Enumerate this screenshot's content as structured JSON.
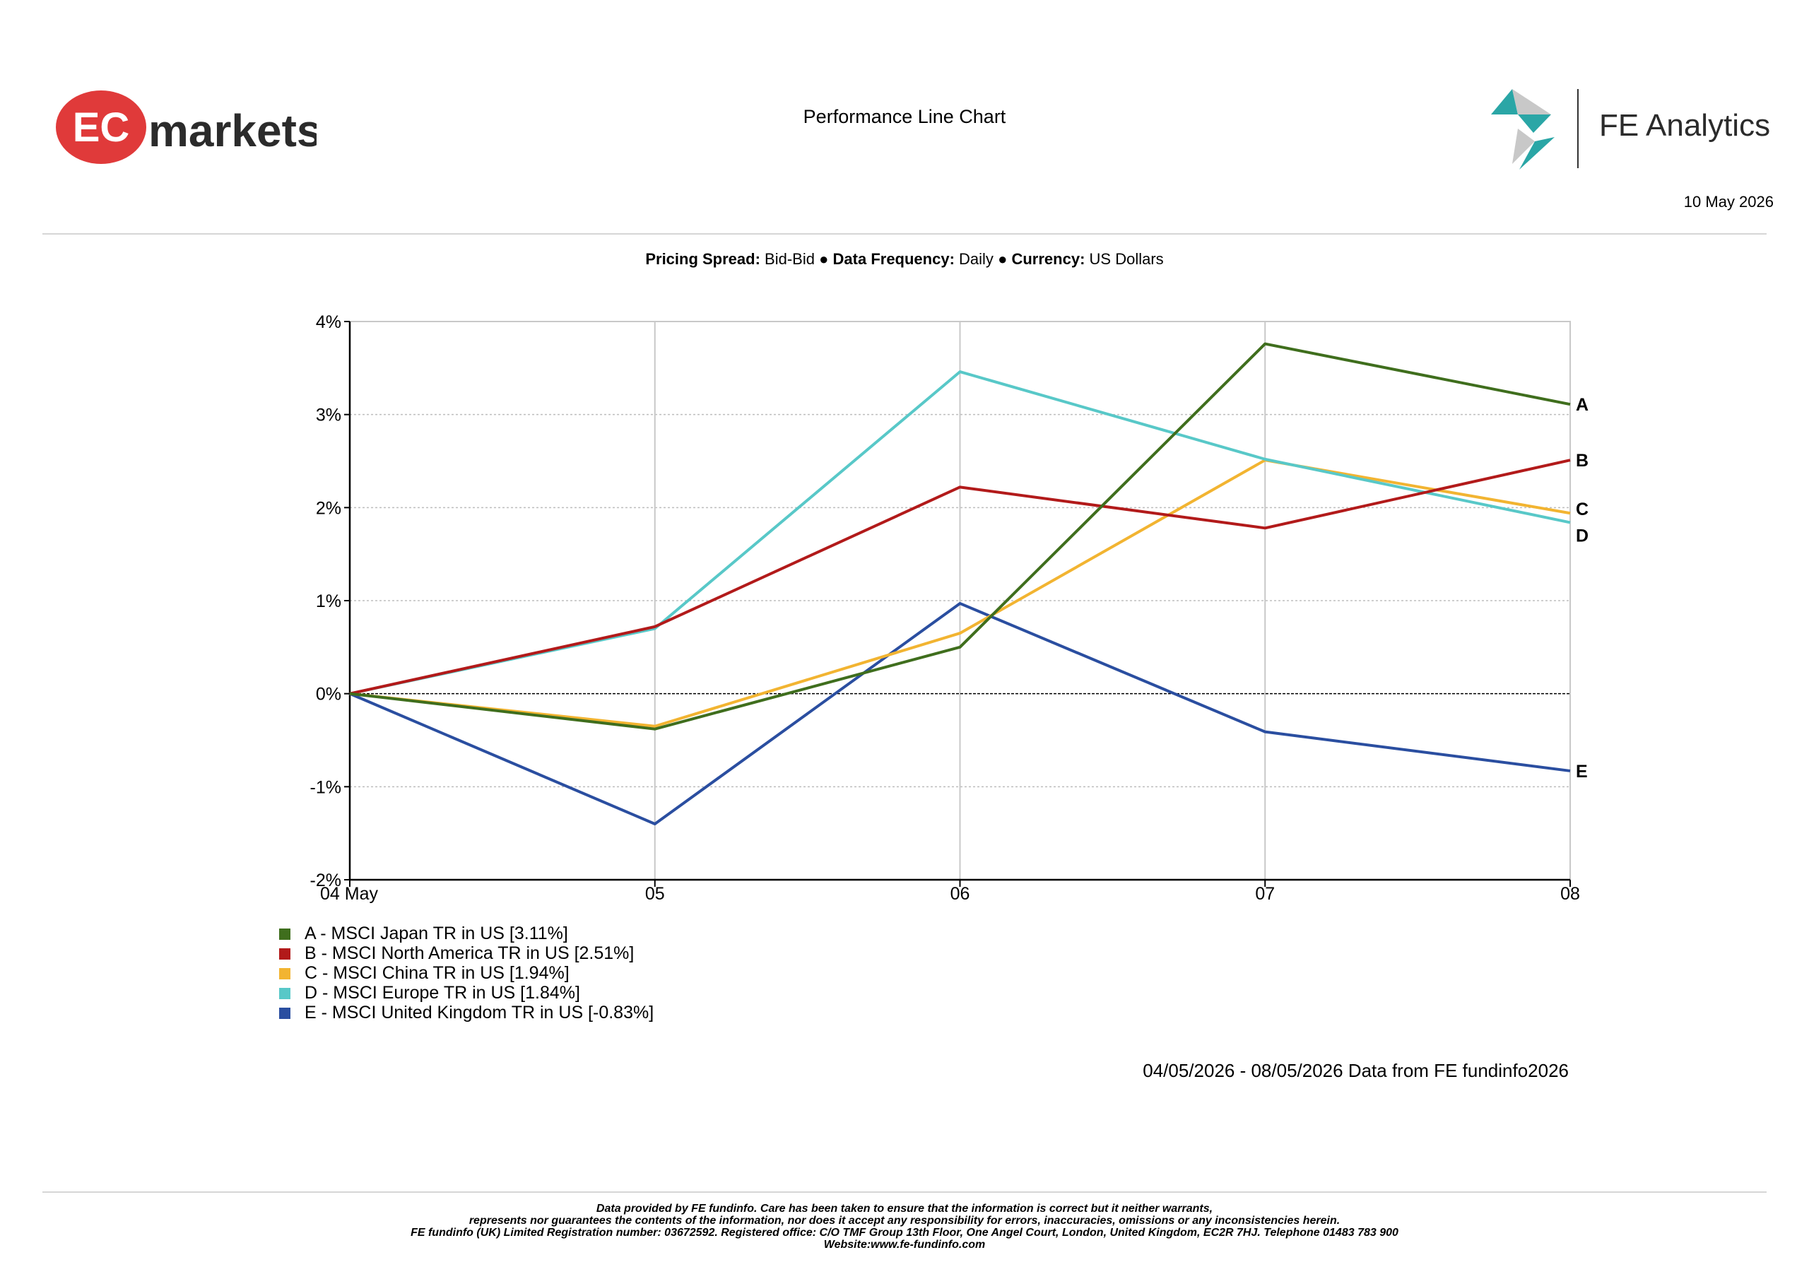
{
  "header": {
    "brand_left": {
      "ec": "EC",
      "markets": "markets",
      "color": "#e03a3a"
    },
    "title": "Performance Line Chart",
    "brand_right": "FE Analytics",
    "date": "10 May 2026"
  },
  "meta": {
    "pricing_label": "Pricing Spread:",
    "pricing_value": "Bid-Bid",
    "freq_label": "Data Frequency:",
    "freq_value": "Daily",
    "currency_label": "Currency:",
    "currency_value": "US Dollars",
    "sep": "●"
  },
  "chart_data": {
    "type": "line",
    "x": [
      "04 May",
      "05",
      "06",
      "07",
      "08"
    ],
    "ylim": [
      -2,
      4
    ],
    "yticks": [
      "-2%",
      "-1%",
      "0%",
      "1%",
      "2%",
      "3%",
      "4%"
    ],
    "grid": true,
    "series": [
      {
        "name": "A - MSCI Japan TR in US [3.11%]",
        "tag": "A",
        "color": "#3f6e1d",
        "values": [
          0,
          -0.38,
          0.5,
          3.76,
          3.11
        ]
      },
      {
        "name": "B - MSCI North America TR in US [2.51%]",
        "tag": "B",
        "color": "#b21a1a",
        "values": [
          0,
          0.72,
          2.22,
          1.78,
          2.51
        ]
      },
      {
        "name": "C - MSCI China TR in US [1.94%]",
        "tag": "C",
        "color": "#f2b431",
        "values": [
          0,
          -0.35,
          0.65,
          2.51,
          1.94
        ]
      },
      {
        "name": "D - MSCI Europe TR in US [1.84%]",
        "tag": "D",
        "color": "#58c8c8",
        "values": [
          0,
          0.7,
          3.46,
          2.52,
          1.84
        ]
      },
      {
        "name": "E - MSCI United Kingdom TR in US [-0.83%]",
        "tag": "E",
        "color": "#2a4ea0",
        "values": [
          0,
          -1.4,
          0.97,
          -0.41,
          -0.83
        ]
      }
    ]
  },
  "footer": {
    "range": "04/05/2026 - 08/05/2026 Data from FE fundinfo2026",
    "disclaimer": [
      "Data provided by FE fundinfo. Care has been taken to ensure that the information is correct but it neither warrants,",
      "represents nor guarantees the contents of the information, nor does it accept any responsibility for errors, inaccuracies, omissions or any inconsistencies herein.",
      "FE fundinfo (UK) Limited Registration number: 03672592. Registered office: C/O TMF Group 13th Floor, One Angel Court, London, United Kingdom, EC2R 7HJ. Telephone 01483 783 900",
      "Website:www.fe-fundinfo.com"
    ]
  }
}
